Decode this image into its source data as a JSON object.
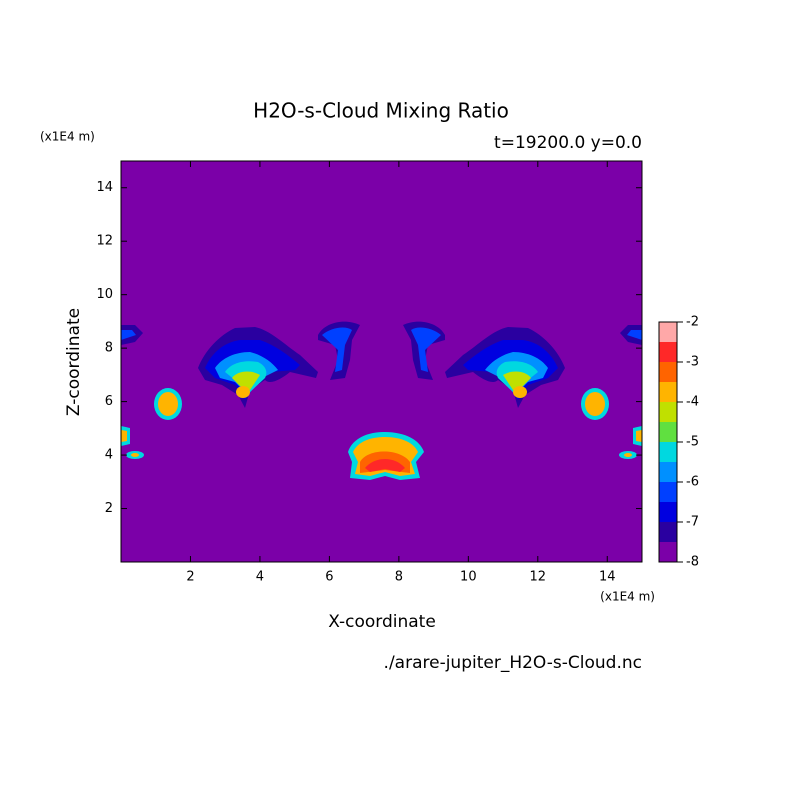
{
  "chart_data": {
    "type": "contour",
    "title": "H2O-s-Cloud Mixing Ratio",
    "subtitle": "t=19200.0 y=0.0",
    "x_label": "X-coordinate",
    "y_label": "Z-coordinate",
    "x_unit": "(x1E4 m)",
    "y_unit": "(x1E4 m)",
    "source": "./arare-jupiter_H2O-s-Cloud.nc",
    "xlim": [
      0,
      15
    ],
    "ylim": [
      0,
      15
    ],
    "xticks": [
      2,
      4,
      6,
      8,
      10,
      12,
      14
    ],
    "yticks": [
      2,
      4,
      6,
      8,
      10,
      12,
      14
    ],
    "levels": [
      -8,
      -7.5,
      -7,
      -6.5,
      -6,
      -5.5,
      -5,
      -4.5,
      -4,
      -3.5,
      -3,
      -2.5,
      -2
    ],
    "colors": [
      "#7b00a8",
      "#2a00a0",
      "#0000e0",
      "#0040ff",
      "#0090ff",
      "#00d8e0",
      "#60e040",
      "#c0e000",
      "#ffb400",
      "#ff6400",
      "#ff2828",
      "#ffa8a8"
    ],
    "colorbar_ticks": [
      -8,
      -7,
      -6,
      -5,
      -4,
      -3,
      -2
    ]
  }
}
